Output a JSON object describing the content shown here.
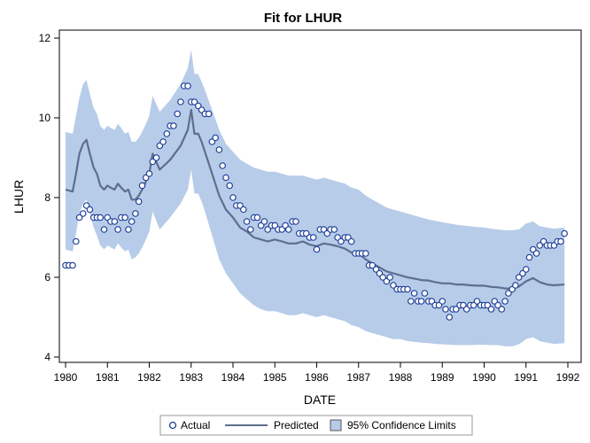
{
  "chart_data": {
    "type": "line",
    "title": "Fit for LHUR",
    "xlabel": "DATE",
    "ylabel": "LHUR",
    "xlim": [
      1980,
      1992
    ],
    "ylim": [
      3.8,
      12.2
    ],
    "xticks": [
      "1980",
      "1981",
      "1982",
      "1983",
      "1984",
      "1985",
      "1986",
      "1987",
      "1988",
      "1989",
      "1990",
      "1991",
      "1992"
    ],
    "yticks": [
      "4",
      "6",
      "8",
      "10",
      "12"
    ],
    "colors": {
      "band": "#b7cce8",
      "predicted": "#5d6e8f",
      "actual": "#1f3f99",
      "frame": "#000000"
    },
    "legend": {
      "placement": "bottom",
      "items": [
        "Actual",
        "Predicted",
        "95% Confidence Limits"
      ]
    },
    "actual": {
      "name": "Actual",
      "x": [
        1980.0,
        1980.08,
        1980.17,
        1980.25,
        1980.33,
        1980.42,
        1980.5,
        1980.58,
        1980.67,
        1980.75,
        1980.83,
        1980.92,
        1981.0,
        1981.08,
        1981.17,
        1981.25,
        1981.33,
        1981.42,
        1981.5,
        1981.58,
        1981.67,
        1981.75,
        1981.83,
        1981.92,
        1982.0,
        1982.08,
        1982.17,
        1982.25,
        1982.33,
        1982.42,
        1982.5,
        1982.58,
        1982.67,
        1982.75,
        1982.83,
        1982.92,
        1983.0,
        1983.08,
        1983.17,
        1983.25,
        1983.33,
        1983.42,
        1983.5,
        1983.58,
        1983.67,
        1983.75,
        1983.83,
        1983.92,
        1984.0,
        1984.08,
        1984.17,
        1984.25,
        1984.33,
        1984.42,
        1984.5,
        1984.58,
        1984.67,
        1984.75,
        1984.83,
        1984.92,
        1985.0,
        1985.08,
        1985.17,
        1985.25,
        1985.33,
        1985.42,
        1985.5,
        1985.58,
        1985.67,
        1985.75,
        1985.83,
        1985.92,
        1986.0,
        1986.08,
        1986.17,
        1986.25,
        1986.33,
        1986.42,
        1986.5,
        1986.58,
        1986.67,
        1986.75,
        1986.83,
        1986.92,
        1987.0,
        1987.08,
        1987.17,
        1987.25,
        1987.33,
        1987.42,
        1987.5,
        1987.58,
        1987.67,
        1987.75,
        1987.83,
        1987.92,
        1988.0,
        1988.08,
        1988.17,
        1988.25,
        1988.33,
        1988.42,
        1988.5,
        1988.58,
        1988.67,
        1988.75,
        1988.83,
        1988.92,
        1989.0,
        1989.08,
        1989.17,
        1989.25,
        1989.33,
        1989.42,
        1989.5,
        1989.58,
        1989.67,
        1989.75,
        1989.83,
        1989.92,
        1990.0,
        1990.08,
        1990.17,
        1990.25,
        1990.33,
        1990.42,
        1990.5,
        1990.58,
        1990.67,
        1990.75,
        1990.83,
        1990.92,
        1991.0,
        1991.08,
        1991.17,
        1991.25,
        1991.33,
        1991.42,
        1991.5,
        1991.58,
        1991.67,
        1991.75,
        1991.83,
        1991.92
      ],
      "y": [
        6.3,
        6.3,
        6.3,
        6.9,
        7.5,
        7.6,
        7.8,
        7.7,
        7.5,
        7.5,
        7.5,
        7.2,
        7.5,
        7.4,
        7.4,
        7.2,
        7.5,
        7.5,
        7.2,
        7.4,
        7.6,
        7.9,
        8.3,
        8.5,
        8.6,
        8.9,
        9.0,
        9.3,
        9.4,
        9.6,
        9.8,
        9.8,
        10.1,
        10.4,
        10.8,
        10.8,
        10.4,
        10.4,
        10.3,
        10.2,
        10.1,
        10.1,
        9.4,
        9.5,
        9.2,
        8.8,
        8.5,
        8.3,
        8.0,
        7.8,
        7.8,
        7.7,
        7.4,
        7.2,
        7.5,
        7.5,
        7.3,
        7.4,
        7.2,
        7.3,
        7.3,
        7.2,
        7.2,
        7.3,
        7.2,
        7.4,
        7.4,
        7.1,
        7.1,
        7.1,
        7.0,
        7.0,
        6.7,
        7.2,
        7.2,
        7.1,
        7.2,
        7.2,
        7.0,
        6.9,
        7.0,
        7.0,
        6.9,
        6.6,
        6.6,
        6.6,
        6.6,
        6.3,
        6.3,
        6.2,
        6.1,
        6.0,
        5.9,
        6.0,
        5.8,
        5.7,
        5.7,
        5.7,
        5.7,
        5.4,
        5.6,
        5.4,
        5.4,
        5.6,
        5.4,
        5.4,
        5.3,
        5.3,
        5.4,
        5.2,
        5.0,
        5.2,
        5.2,
        5.3,
        5.3,
        5.2,
        5.3,
        5.3,
        5.4,
        5.3,
        5.3,
        5.3,
        5.2,
        5.4,
        5.3,
        5.2,
        5.4,
        5.6,
        5.7,
        5.8,
        6.0,
        6.1,
        6.2,
        6.5,
        6.7,
        6.6,
        6.8,
        6.9,
        6.8,
        6.8,
        6.8,
        6.9,
        6.9,
        7.1
      ]
    },
    "predicted": {
      "name": "Predicted",
      "x": [
        1980.0,
        1980.17,
        1980.25,
        1980.33,
        1980.42,
        1980.5,
        1980.58,
        1980.67,
        1980.75,
        1980.83,
        1980.92,
        1981.0,
        1981.08,
        1981.17,
        1981.25,
        1981.33,
        1981.42,
        1981.5,
        1981.58,
        1981.67,
        1981.75,
        1981.83,
        1981.92,
        1982.0,
        1982.08,
        1982.25,
        1982.5,
        1982.75,
        1982.92,
        1983.0,
        1983.08,
        1983.17,
        1983.25,
        1983.33,
        1983.5,
        1983.67,
        1983.83,
        1984.0,
        1984.17,
        1984.33,
        1984.5,
        1984.67,
        1984.83,
        1985.0,
        1985.17,
        1985.33,
        1985.5,
        1985.67,
        1985.83,
        1986.0,
        1986.17,
        1986.33,
        1986.5,
        1986.67,
        1986.83,
        1987.0,
        1987.17,
        1987.33,
        1987.5,
        1987.67,
        1987.83,
        1988.0,
        1988.17,
        1988.33,
        1988.5,
        1988.67,
        1988.83,
        1989.0,
        1989.17,
        1989.33,
        1989.5,
        1989.67,
        1989.83,
        1990.0,
        1990.17,
        1990.33,
        1990.5,
        1990.67,
        1990.83,
        1991.0,
        1991.17,
        1991.33,
        1991.5,
        1991.67,
        1991.92
      ],
      "y": [
        8.2,
        8.15,
        8.6,
        9.1,
        9.35,
        9.45,
        9.1,
        8.75,
        8.6,
        8.3,
        8.2,
        8.3,
        8.25,
        8.2,
        8.35,
        8.25,
        8.15,
        8.2,
        7.95,
        7.95,
        8.05,
        8.2,
        8.4,
        8.6,
        9.1,
        8.7,
        8.95,
        9.3,
        9.7,
        10.2,
        9.6,
        9.6,
        9.4,
        9.15,
        8.6,
        8.05,
        7.7,
        7.5,
        7.25,
        7.15,
        7.0,
        6.95,
        6.9,
        6.95,
        6.9,
        6.85,
        6.85,
        6.9,
        6.82,
        6.78,
        6.85,
        6.82,
        6.78,
        6.72,
        6.62,
        6.6,
        6.45,
        6.35,
        6.25,
        6.15,
        6.1,
        6.05,
        6.0,
        5.97,
        5.93,
        5.92,
        5.88,
        5.85,
        5.85,
        5.82,
        5.82,
        5.8,
        5.79,
        5.79,
        5.76,
        5.75,
        5.72,
        5.72,
        5.77,
        5.9,
        5.98,
        5.88,
        5.82,
        5.8,
        5.82
      ]
    },
    "confidence_limits": {
      "name": "95% Confidence Limits",
      "x": [
        1980.0,
        1980.17,
        1980.25,
        1980.33,
        1980.42,
        1980.5,
        1980.58,
        1980.67,
        1980.75,
        1980.83,
        1980.92,
        1981.0,
        1981.08,
        1981.17,
        1981.25,
        1981.33,
        1981.42,
        1981.5,
        1981.58,
        1981.67,
        1981.75,
        1981.83,
        1981.92,
        1982.0,
        1982.08,
        1982.25,
        1982.5,
        1982.75,
        1982.92,
        1983.0,
        1983.08,
        1983.17,
        1983.25,
        1983.33,
        1983.5,
        1983.67,
        1983.83,
        1984.0,
        1984.17,
        1984.33,
        1984.5,
        1984.67,
        1984.83,
        1985.0,
        1985.17,
        1985.33,
        1985.5,
        1985.67,
        1985.83,
        1986.0,
        1986.17,
        1986.33,
        1986.5,
        1986.67,
        1986.83,
        1987.0,
        1987.17,
        1987.33,
        1987.5,
        1987.67,
        1987.83,
        1988.0,
        1988.17,
        1988.33,
        1988.5,
        1988.67,
        1988.83,
        1989.0,
        1989.17,
        1989.33,
        1989.5,
        1989.67,
        1989.83,
        1990.0,
        1990.17,
        1990.33,
        1990.5,
        1990.67,
        1990.83,
        1991.0,
        1991.17,
        1991.33,
        1991.5,
        1991.67,
        1991.92
      ],
      "upper": [
        9.65,
        9.6,
        10.05,
        10.5,
        10.85,
        10.95,
        10.6,
        10.25,
        10.1,
        9.8,
        9.7,
        9.8,
        9.75,
        9.7,
        9.85,
        9.75,
        9.6,
        9.65,
        9.4,
        9.4,
        9.5,
        9.65,
        9.85,
        10.05,
        10.55,
        10.15,
        10.45,
        10.85,
        11.25,
        11.7,
        11.1,
        11.1,
        10.9,
        10.7,
        10.2,
        9.7,
        9.35,
        9.15,
        8.95,
        8.85,
        8.75,
        8.7,
        8.65,
        8.65,
        8.6,
        8.55,
        8.55,
        8.55,
        8.5,
        8.45,
        8.5,
        8.45,
        8.4,
        8.35,
        8.25,
        8.2,
        8.05,
        7.95,
        7.85,
        7.75,
        7.7,
        7.65,
        7.6,
        7.55,
        7.5,
        7.45,
        7.42,
        7.38,
        7.35,
        7.32,
        7.3,
        7.28,
        7.26,
        7.25,
        7.22,
        7.2,
        7.18,
        7.18,
        7.2,
        7.35,
        7.4,
        7.28,
        7.25,
        7.22,
        7.25
      ],
      "lower": [
        6.7,
        6.65,
        7.1,
        7.6,
        7.85,
        7.95,
        7.6,
        7.25,
        7.05,
        6.8,
        6.7,
        6.8,
        6.75,
        6.7,
        6.85,
        6.75,
        6.65,
        6.7,
        6.45,
        6.5,
        6.6,
        6.75,
        6.95,
        7.15,
        7.65,
        7.2,
        7.5,
        7.85,
        8.2,
        8.7,
        8.1,
        8.1,
        7.9,
        7.65,
        7.05,
        6.45,
        6.1,
        5.85,
        5.6,
        5.45,
        5.3,
        5.2,
        5.15,
        5.15,
        5.1,
        5.05,
        5.05,
        5.1,
        5.05,
        5.0,
        5.05,
        5.0,
        4.95,
        4.9,
        4.8,
        4.75,
        4.65,
        4.6,
        4.55,
        4.5,
        4.45,
        4.45,
        4.4,
        4.38,
        4.36,
        4.35,
        4.33,
        4.32,
        4.31,
        4.3,
        4.3,
        4.3,
        4.31,
        4.31,
        4.3,
        4.3,
        4.27,
        4.27,
        4.32,
        4.45,
        4.5,
        4.4,
        4.36,
        4.33,
        4.35
      ]
    }
  }
}
